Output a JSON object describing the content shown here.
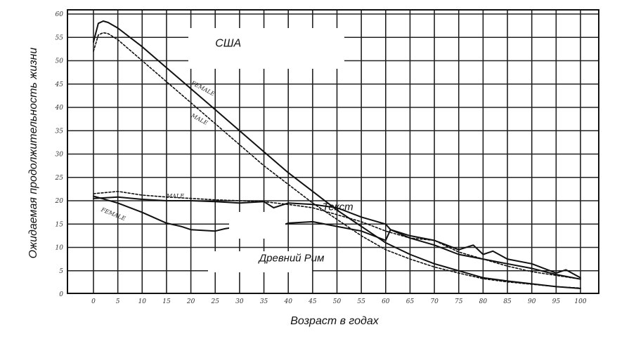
{
  "chart_data": {
    "type": "line",
    "title": "",
    "xlabel": "Возраст в годах",
    "ylabel": "Ожидаемая продолжительность жизни",
    "xlim": [
      0,
      100
    ],
    "ylim": [
      0,
      60
    ],
    "grid": true,
    "x_ticks": [
      0,
      5,
      10,
      15,
      20,
      25,
      30,
      35,
      40,
      45,
      50,
      55,
      60,
      65,
      70,
      75,
      80,
      85,
      90,
      95,
      100
    ],
    "x_tick_labels": [
      "0",
      "5",
      "10",
      "15",
      "20",
      "25",
      "30",
      "35",
      "40",
      "45",
      "50",
      "55",
      "60",
      "65",
      "70",
      "75",
      "80",
      "85",
      "90",
      "95",
      "100"
    ],
    "y_ticks": [
      0,
      5,
      10,
      15,
      20,
      25,
      30,
      35,
      40,
      45,
      50,
      55,
      60
    ],
    "y_tick_labels": [
      "0",
      "5",
      "10",
      "15",
      "20",
      "25",
      "30",
      "35",
      "40",
      "45",
      "50",
      "55",
      "60"
    ],
    "annotations": [
      {
        "text": "США",
        "x": 25,
        "y": 53
      },
      {
        "text": "Текст",
        "x": 47,
        "y": 18
      },
      {
        "text": "Древний Рим",
        "x": 34,
        "y": 7
      }
    ],
    "series": [
      {
        "name": "FEMALE",
        "group": "США",
        "style": "solid",
        "x": [
          0,
          1,
          2,
          3,
          5,
          10,
          15,
          20,
          25,
          30,
          35,
          40,
          45,
          50,
          55,
          60,
          65,
          70,
          75,
          80,
          85,
          90,
          95,
          100
        ],
        "y": [
          54,
          58,
          58.5,
          58.2,
          57,
          53,
          48.5,
          44,
          39.5,
          35,
          30.5,
          26,
          22,
          18,
          14.5,
          11,
          8.5,
          6.5,
          5,
          3.5,
          2.8,
          2.2,
          1.6,
          1.2
        ]
      },
      {
        "name": "MALE",
        "group": "США",
        "style": "dashed",
        "x": [
          0,
          1,
          2,
          3,
          5,
          10,
          15,
          20,
          25,
          30,
          35,
          40,
          45,
          50,
          55,
          60,
          65,
          70,
          75,
          80,
          85,
          90,
          95,
          100
        ],
        "y": [
          52,
          55.5,
          56,
          55.8,
          54.5,
          50,
          45.5,
          41,
          36.5,
          32,
          27.5,
          23.5,
          19.5,
          16,
          12.5,
          9.5,
          7.5,
          5.8,
          4.5,
          3.3,
          2.6,
          2.1,
          1.6,
          1.3
        ]
      },
      {
        "name": "MALE",
        "group": "Древний Рим",
        "style": "solid",
        "x": [
          0,
          5,
          10,
          15,
          20,
          25,
          30,
          35,
          37,
          40,
          45,
          50,
          55,
          60,
          61,
          65,
          70,
          75,
          78,
          80,
          82,
          85,
          90,
          95,
          97,
          100
        ],
        "y": [
          20.5,
          20.8,
          20.3,
          20,
          20,
          19.8,
          19.5,
          19.8,
          18.5,
          19.5,
          19.2,
          18.5,
          16.5,
          15,
          13.8,
          12.5,
          11.5,
          9.5,
          10.5,
          8.5,
          9.2,
          7.5,
          6.5,
          4.5,
          5.2,
          3.5
        ]
      },
      {
        "name": "FEMALE",
        "group": "Древний Рим",
        "style": "solid",
        "x": [
          0,
          5,
          10,
          15,
          18,
          20,
          25,
          27,
          30,
          35,
          37,
          40,
          45,
          50,
          55,
          60,
          61,
          65,
          70,
          75,
          80,
          85,
          90,
          95,
          100
        ],
        "y": [
          21,
          19.5,
          17.5,
          15.2,
          14.5,
          13.8,
          13.5,
          14,
          14.5,
          15.5,
          14.2,
          15.2,
          15.5,
          14.5,
          13.5,
          11.5,
          13.8,
          12,
          10.5,
          8.5,
          7.5,
          6.5,
          5.5,
          4.2,
          3.2
        ]
      },
      {
        "name": "MALE",
        "group": "Древний Рим",
        "style": "dashed",
        "x": [
          0,
          5,
          10,
          15,
          20,
          25,
          30,
          35,
          40,
          45,
          50,
          55,
          60,
          65,
          70,
          75,
          80,
          85,
          90,
          95,
          100
        ],
        "y": [
          21.5,
          22,
          21.2,
          20.8,
          20.5,
          20.2,
          20,
          19.8,
          19.2,
          18.5,
          17,
          15.5,
          13.5,
          12,
          11.5,
          9,
          7.5,
          6,
          4.8,
          4,
          3.2
        ]
      }
    ]
  }
}
